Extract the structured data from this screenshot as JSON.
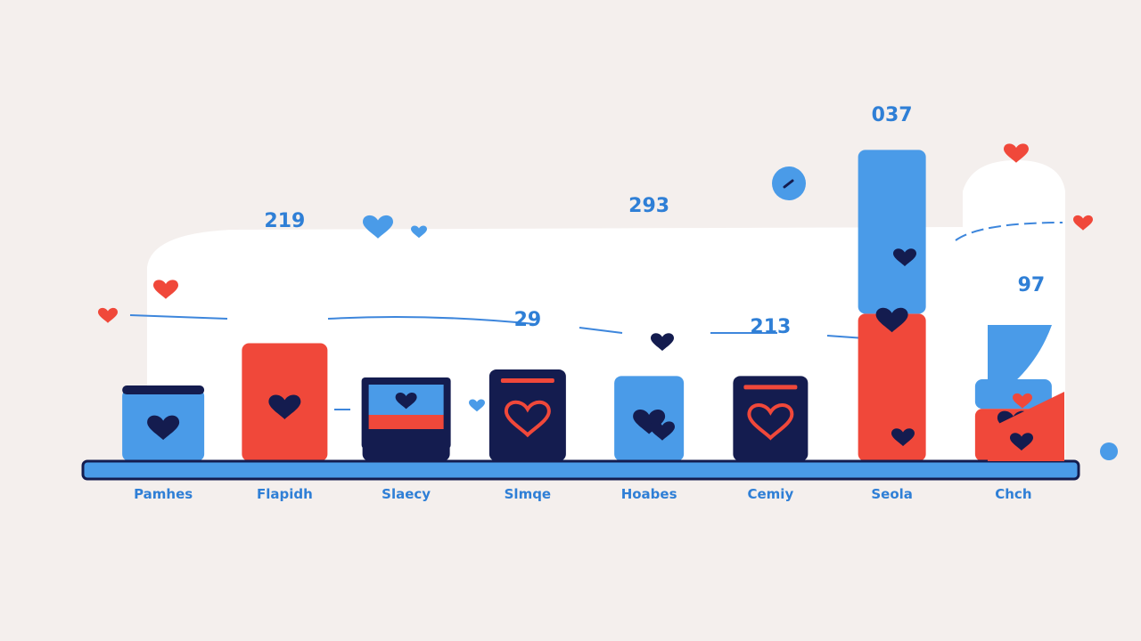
{
  "colors": {
    "background": "#f4efed",
    "panel": "#ffffff",
    "blue": "#4a9be8",
    "red": "#f0483a",
    "navy": "#141c4f",
    "label_blue": "#2f7fd6"
  },
  "chart_data": {
    "type": "bar",
    "title": "",
    "xlabel": "",
    "ylabel": "",
    "categories": [
      "Pamhes",
      "Flapidh",
      "Slaecy",
      "Slmqe",
      "Hoabes",
      "Cemiy",
      "Seola",
      "Chch"
    ],
    "icons": [
      "heart-icon",
      "heart-icon",
      "monitor-icon",
      "heart-outline-icon",
      "heart-icon",
      "heart-outline-icon",
      "heart-icon",
      "heart-icon"
    ],
    "ylim": [
      0,
      1000
    ],
    "series": [
      {
        "values": [
          220,
          0,
          0,
          0,
          260,
          0,
          500,
          90
        ]
      },
      {
        "values": [
          0,
          360,
          0,
          0,
          0,
          0,
          450,
          160
        ]
      },
      {
        "values": [
          0,
          0,
          190,
          280,
          0,
          260,
          0,
          0
        ]
      }
    ],
    "data_labels": [
      {
        "text": "219",
        "category_index": 1
      },
      {
        "text": "29",
        "category_index": 3
      },
      {
        "text": "293",
        "category_index": 4
      },
      {
        "text": "213",
        "category_index": 5
      },
      {
        "text": "037",
        "category_index": 6
      },
      {
        "text": "97",
        "category_index": 7
      }
    ],
    "grid": false,
    "legend": "none"
  }
}
